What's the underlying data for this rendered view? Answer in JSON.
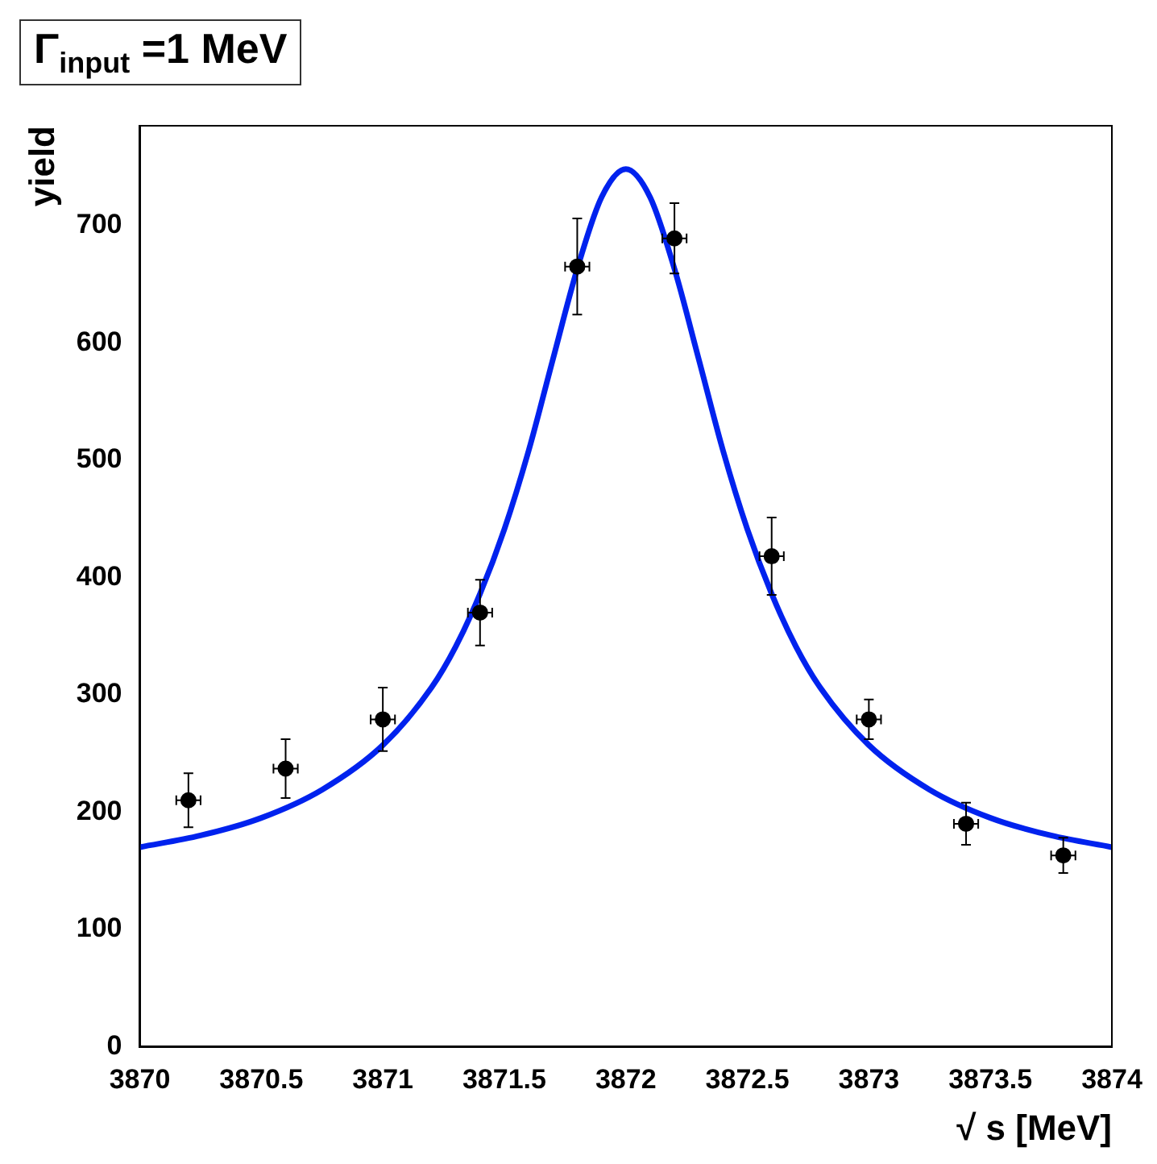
{
  "chart_data": {
    "type": "scatter",
    "title": "Γ$_{input}$ =1 MeV",
    "xlabel": "√ s [MeV]",
    "ylabel": "yield",
    "xlim": [
      3870,
      3874
    ],
    "xticks": [
      3870,
      3870.5,
      3871,
      3871.5,
      3872,
      3872.5,
      3873,
      3873.5,
      3874
    ],
    "ylim": [
      0,
      785
    ],
    "yticks": [
      0,
      100,
      200,
      300,
      400,
      500,
      600,
      700
    ],
    "grid": false,
    "legend": false,
    "marker": "circle",
    "series": [
      {
        "color": "#000000",
        "x": [
          3870.2,
          3870.6,
          3871.0,
          3871.4,
          3871.8,
          3872.2,
          3872.6,
          3873.0,
          3873.4,
          3873.8
        ],
        "values": [
          210,
          237,
          279,
          370,
          665,
          689,
          418,
          279,
          190,
          163
        ],
        "errors": [
          23,
          25,
          27,
          28,
          41,
          30,
          33,
          17,
          18,
          15
        ],
        "xerrors": [
          0.05,
          0.05,
          0.05,
          0.05,
          0.05,
          0.05,
          0.05,
          0.05,
          0.05,
          0.05
        ]
      },
      {
        "type": "line",
        "color": "#0022ee",
        "line_style": "solid",
        "marker": "none",
        "x": [
          3870,
          3870.25,
          3870.5,
          3870.75,
          3871,
          3871.2,
          3871.3,
          3871.4,
          3871.5,
          3871.6,
          3871.7,
          3871.8,
          3871.9,
          3872,
          3872.1,
          3872.2,
          3872.3,
          3872.4,
          3872.5,
          3872.6,
          3872.7,
          3872.8,
          3873,
          3873.25,
          3873.5,
          3873.75,
          3874
        ],
        "values": [
          170,
          180,
          195,
          219,
          257,
          306,
          341,
          386,
          441,
          508,
          586,
          663,
          724,
          748,
          724,
          663,
          586,
          508,
          441,
          386,
          341,
          306,
          257,
          219,
          195,
          180,
          170
        ]
      }
    ]
  }
}
